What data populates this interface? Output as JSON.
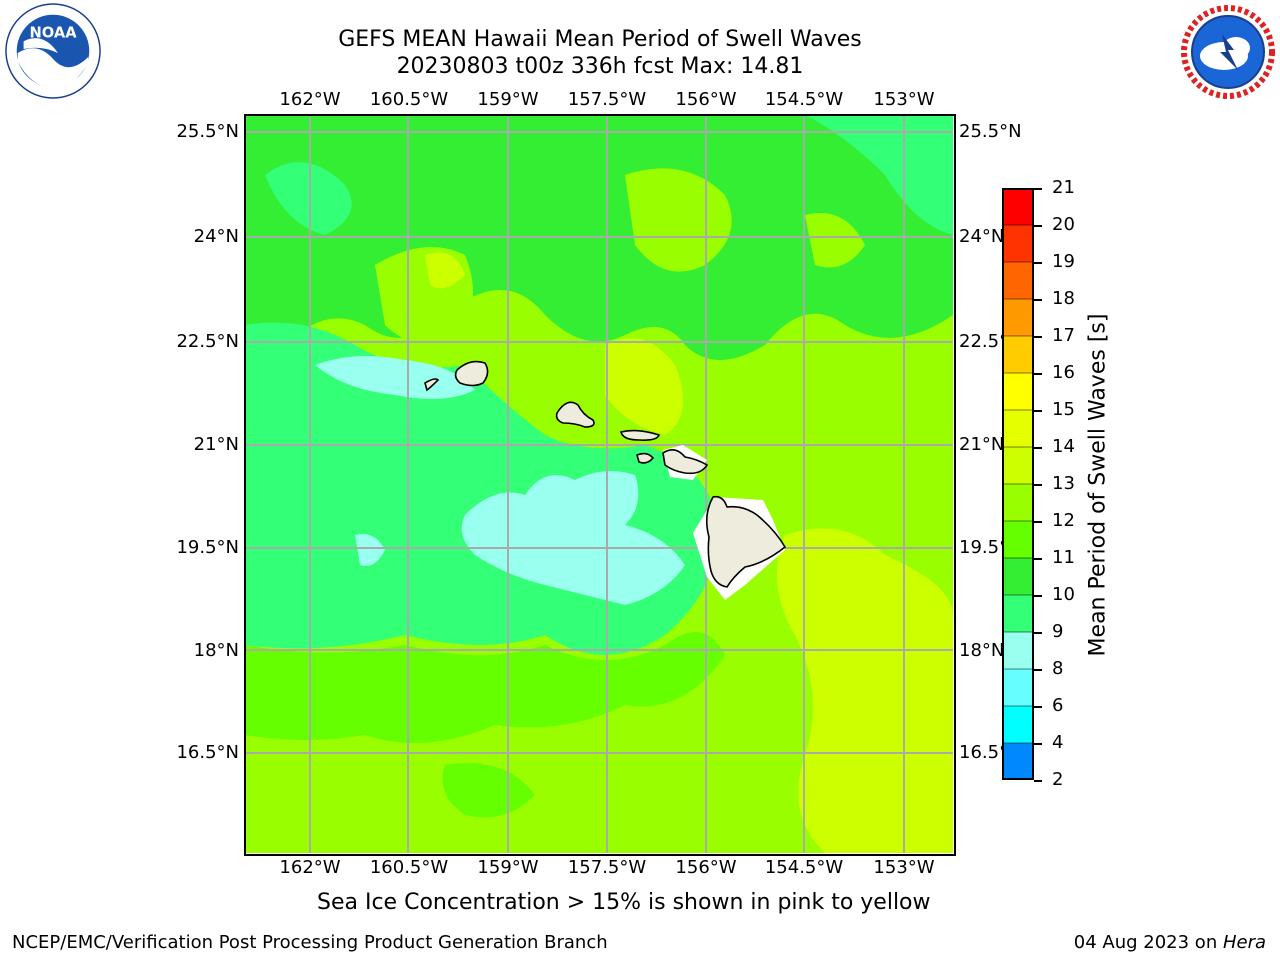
{
  "title": {
    "line1": "GEFS MEAN Hawaii Mean Period of Swell Waves",
    "line2": "20230803 t00z 336h fcst   Max: 14.81"
  },
  "lon_labels": [
    "162°W",
    "160.5°W",
    "159°W",
    "157.5°W",
    "156°W",
    "154.5°W",
    "153°W"
  ],
  "lat_labels": [
    "25.5°N",
    "24°N",
    "22.5°N",
    "21°N",
    "19.5°N",
    "18°N",
    "16.5°N"
  ],
  "colorbar": {
    "title": "Mean Period of Swell Waves [s]",
    "ticks": [
      "21",
      "20",
      "19",
      "18",
      "17",
      "16",
      "15",
      "14",
      "13",
      "12",
      "11",
      "10",
      "9",
      "8",
      "6",
      "4",
      "2"
    ],
    "colors": [
      "#ff0000",
      "#ff3300",
      "#ff6600",
      "#ff9900",
      "#ffcc00",
      "#ffff00",
      "#e5ff00",
      "#ccff00",
      "#99ff00",
      "#66ff00",
      "#33ee33",
      "#33ff77",
      "#99ffee",
      "#66ffff",
      "#00ffff",
      "#0088ff",
      "#0000ff"
    ]
  },
  "map_colors": {
    "c9": "#99ffee",
    "c10": "#33ff77",
    "c11": "#33ee33",
    "c12": "#66ff00",
    "c13": "#99ff00",
    "c14": "#ccff00",
    "land": "#eeecdc",
    "grid": "#aaaaaa"
  },
  "note": "Sea Ice Concentration > 15% is shown in pink to yellow",
  "footer": {
    "left": "NCEP/EMC/Verification Post Processing Product Generation Branch",
    "date": "04 Aug 2023 on ",
    "machine": "Hera"
  },
  "icons": [
    "noaa-logo",
    "nws-logo"
  ]
}
